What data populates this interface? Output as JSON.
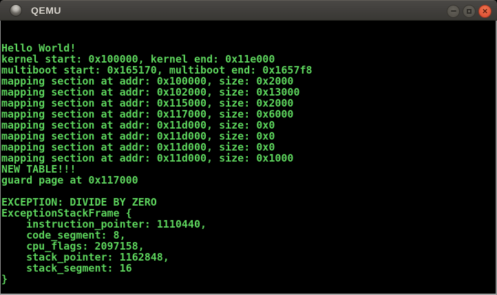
{
  "window": {
    "title": "QEMU",
    "controls": {
      "minimize_label": "minimize",
      "maximize_label": "maximize",
      "close_label": "close",
      "close_glyph": "×"
    }
  },
  "terminal": {
    "lines": [
      "Hello World!",
      "kernel start: 0x100000, kernel end: 0x11e000",
      "multiboot start: 0x165170, multiboot end: 0x1657f8",
      "mapping section at addr: 0x100000, size: 0x2000",
      "mapping section at addr: 0x102000, size: 0x13000",
      "mapping section at addr: 0x115000, size: 0x2000",
      "mapping section at addr: 0x117000, size: 0x6000",
      "mapping section at addr: 0x11d000, size: 0x0",
      "mapping section at addr: 0x11d000, size: 0x0",
      "mapping section at addr: 0x11d000, size: 0x0",
      "mapping section at addr: 0x11d000, size: 0x1000",
      "NEW TABLE!!!",
      "guard page at 0x117000",
      "",
      "EXCEPTION: DIVIDE BY ZERO",
      "ExceptionStackFrame {",
      "    instruction_pointer: 1110440,",
      "    code_segment: 8,",
      "    cpu_flags: 2097158,",
      "    stack_pointer: 1162848,",
      "    stack_segment: 16",
      "}"
    ]
  },
  "colors": {
    "terminal_text": "#5dd55d",
    "terminal_background": "#000000",
    "titlebar_background": "#403e3b",
    "close_button": "#e2583a"
  }
}
